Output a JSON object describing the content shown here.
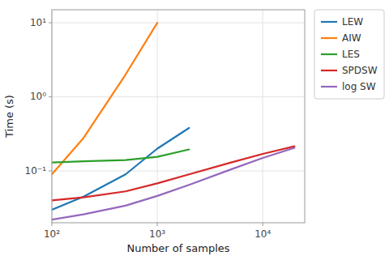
{
  "chart_data": {
    "type": "line",
    "title": "",
    "xlabel": "Number of samples",
    "ylabel": "Time (s)",
    "log": true,
    "grid": true,
    "legend": "right",
    "xlim": [
      100,
      25000
    ],
    "ylim": [
      0.02,
      15.0
    ],
    "xticks": [
      {
        "value": 100,
        "label": "10²"
      },
      {
        "value": 1000,
        "label": "10³"
      },
      {
        "value": 10000,
        "label": "10⁴"
      }
    ],
    "yticks": [
      {
        "value": 0.1,
        "label": "10⁻¹"
      },
      {
        "value": 1,
        "label": "10⁰"
      },
      {
        "value": 10,
        "label": "10¹"
      }
    ],
    "series": [
      {
        "name": "LEW",
        "color": "#1f77b4",
        "x": [
          100,
          200,
          500,
          1000,
          2000
        ],
        "values": [
          0.03,
          0.045,
          0.09,
          0.2,
          0.38
        ]
      },
      {
        "name": "AIW",
        "color": "#ff7f0e",
        "x": [
          100,
          200,
          500,
          1000
        ],
        "values": [
          0.09,
          0.28,
          2.0,
          10.0
        ]
      },
      {
        "name": "LES",
        "color": "#2ca02c",
        "x": [
          100,
          200,
          500,
          1000,
          2000
        ],
        "values": [
          0.13,
          0.135,
          0.14,
          0.155,
          0.195
        ]
      },
      {
        "name": "SPDSW",
        "color": "#d62728",
        "x": [
          100,
          200,
          500,
          1000,
          2000,
          5000,
          10000,
          20000
        ],
        "values": [
          0.04,
          0.044,
          0.053,
          0.068,
          0.09,
          0.13,
          0.17,
          0.215
        ]
      },
      {
        "name": "log SW",
        "color": "#9467bd",
        "x": [
          100,
          200,
          500,
          1000,
          2000,
          5000,
          10000,
          20000
        ],
        "values": [
          0.022,
          0.026,
          0.034,
          0.046,
          0.065,
          0.105,
          0.15,
          0.205
        ]
      }
    ]
  }
}
